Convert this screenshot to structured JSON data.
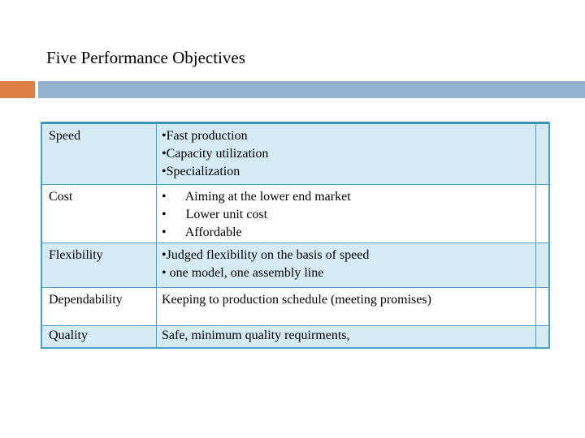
{
  "slide": {
    "title": "Five Performance Objectives",
    "accent_colors": {
      "orange_block": "#DC8045",
      "blue_bar": "#94B2D0"
    }
  },
  "table": {
    "colors": {
      "alt_row_bg": "#D5EBF4",
      "plain_row_bg": "#FFFFFF",
      "border": "#4BA0C5",
      "border_top": "#3E93B8",
      "text": "#000000"
    },
    "rows": [
      {
        "label": "Speed",
        "lines": [
          "•Fast production",
          "•Capacity utilization",
          "•Specialization"
        ]
      },
      {
        "label": "Cost",
        "lines": [
          "•      Aiming at the lower end market",
          "•      Lower unit cost",
          "•      Affordable"
        ]
      },
      {
        "label": "Flexibility",
        "lines": [
          "•Judged flexibility on the basis of speed",
          "• one model, one assembly line"
        ]
      },
      {
        "label": "Dependability",
        "lines": [
          "Keeping to production schedule (meeting promises)"
        ]
      },
      {
        "label": "Quality",
        "lines": [
          "Safe, minimum quality requirments,"
        ]
      }
    ]
  }
}
